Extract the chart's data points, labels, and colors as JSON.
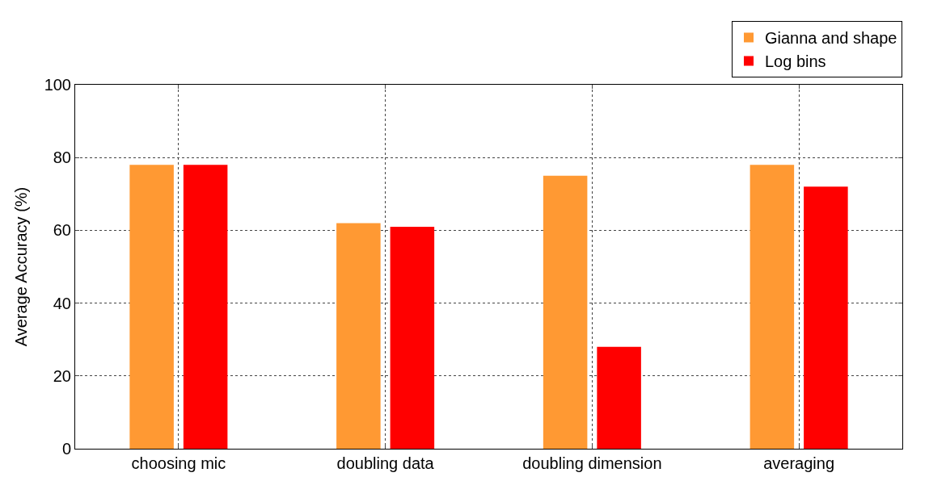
{
  "chart_data": {
    "type": "bar",
    "ylabel": "Average Accuracy (%)",
    "categories": [
      "choosing mic",
      "doubling data",
      "doubling dimension",
      "averaging"
    ],
    "series": [
      {
        "name": "Gianna and shape",
        "color": "#ff9933",
        "values": [
          78,
          62,
          75,
          78
        ]
      },
      {
        "name": "Log bins",
        "color": "#ff0000",
        "values": [
          78,
          61,
          28,
          72
        ]
      }
    ],
    "ylim": [
      0,
      100
    ],
    "yticks": [
      0,
      20,
      40,
      60,
      80,
      100
    ],
    "grid": true,
    "legend": "top right"
  }
}
